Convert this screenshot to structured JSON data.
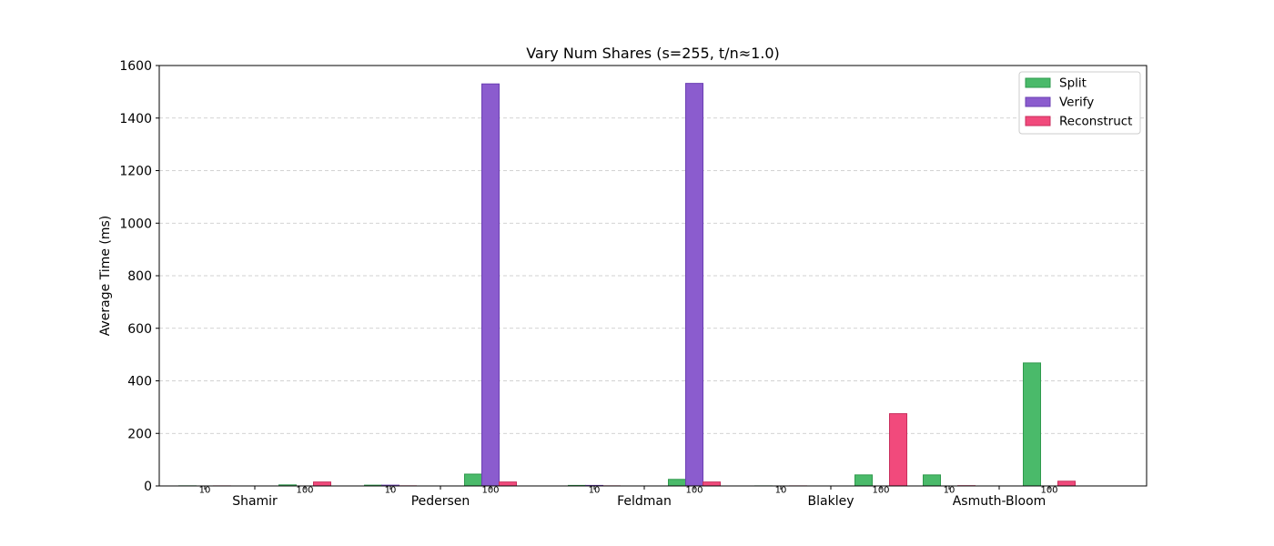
{
  "chart_data": {
    "type": "bar",
    "title": "Vary Num Shares (s=255, t/n≈1.0)",
    "xlabel": "",
    "ylabel": "Average Time (ms)",
    "ylim": [
      0,
      1600
    ],
    "yticks": [
      0,
      200,
      400,
      600,
      800,
      1000,
      1200,
      1400,
      1600
    ],
    "grid": "y-dashed",
    "legend_position": "top-right",
    "categories": [
      "Shamir",
      "Pedersen",
      "Feldman",
      "Blakley",
      "Asmuth-Bloom"
    ],
    "subgroups": [
      "10",
      "100"
    ],
    "series": [
      {
        "name": "Split",
        "color": "#4aba6a",
        "edge": "#2e9a4c",
        "values": {
          "10": [
            0.5,
            3,
            2,
            0.3,
            42
          ],
          "100": [
            4,
            45,
            25,
            42,
            468
          ]
        }
      },
      {
        "name": "Verify",
        "color": "#8b5cce",
        "edge": "#6b3fb3",
        "values": {
          "10": [
            0,
            3,
            2,
            0,
            0
          ],
          "100": [
            0,
            1530,
            1532,
            0,
            0
          ]
        }
      },
      {
        "name": "Reconstruct",
        "color": "#f14a7c",
        "edge": "#c92e5c",
        "values": {
          "10": [
            0.3,
            0.5,
            0.4,
            0.3,
            1
          ],
          "100": [
            15,
            15,
            15,
            275,
            18
          ]
        }
      }
    ]
  }
}
